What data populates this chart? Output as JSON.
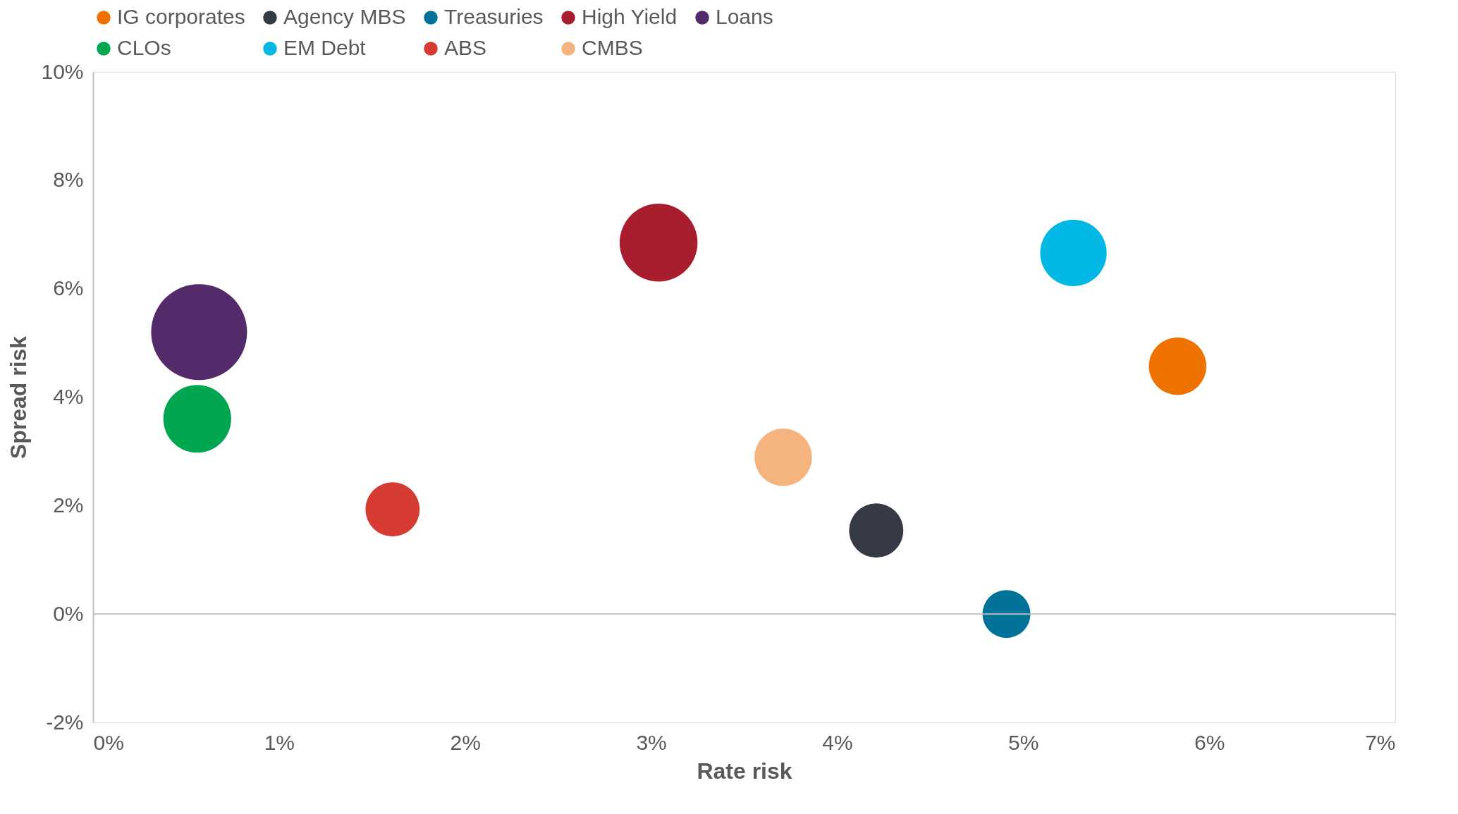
{
  "chart_data": {
    "type": "bubble",
    "xlabel": "Rate risk",
    "ylabel": "Spread risk",
    "xlim": [
      0,
      7
    ],
    "ylim": [
      -2,
      10
    ],
    "xticks": [
      {
        "value": 0,
        "label": "0%"
      },
      {
        "value": 1,
        "label": "1%"
      },
      {
        "value": 2,
        "label": "2%"
      },
      {
        "value": 3,
        "label": "3%"
      },
      {
        "value": 4,
        "label": "4%"
      },
      {
        "value": 5,
        "label": "5%"
      },
      {
        "value": 6,
        "label": "6%"
      },
      {
        "value": 7,
        "label": "7%"
      }
    ],
    "yticks": [
      {
        "value": -2,
        "label": "-2%"
      },
      {
        "value": 0,
        "label": "0%"
      },
      {
        "value": 2,
        "label": "2%"
      },
      {
        "value": 4,
        "label": "4%"
      },
      {
        "value": 6,
        "label": "6%"
      },
      {
        "value": 8,
        "label": "8%"
      },
      {
        "value": 10,
        "label": "10%"
      }
    ],
    "grid": false,
    "legend": "top",
    "ref_lines": [
      {
        "axis": "y",
        "value": 0,
        "color": "#bfbfbf"
      }
    ],
    "series": [
      {
        "name": "IG corporates",
        "color": "#ef7100",
        "x": [
          5.83
        ],
        "values": [
          4.57
        ],
        "sizes": [
          0.36
        ]
      },
      {
        "name": "Agency MBS",
        "color": "#363a45",
        "x": [
          4.21
        ],
        "values": [
          1.54
        ],
        "sizes": [
          0.32
        ]
      },
      {
        "name": "Treasuries",
        "color": "#00729a",
        "x": [
          4.91
        ],
        "values": [
          0.0
        ],
        "sizes": [
          0.25
        ]
      },
      {
        "name": "High Yield",
        "color": "#a91e2e",
        "x": [
          3.04
        ],
        "values": [
          6.85
        ],
        "sizes": [
          0.66
        ]
      },
      {
        "name": "Loans",
        "color": "#532a6a",
        "x": [
          0.57
        ],
        "values": [
          5.2
        ],
        "sizes": [
          1
        ]
      },
      {
        "name": "CLOs",
        "color": "#00a650",
        "x": [
          0.56
        ],
        "values": [
          3.6
        ],
        "sizes": [
          0.5
        ]
      },
      {
        "name": "EM Debt",
        "color": "#00b8e3",
        "x": [
          5.27
        ],
        "values": [
          6.66
        ],
        "sizes": [
          0.48
        ]
      },
      {
        "name": "ABS",
        "color": "#d63b34",
        "x": [
          1.61
        ],
        "values": [
          1.93
        ],
        "sizes": [
          0.32
        ]
      },
      {
        "name": "CMBS",
        "color": "#f5b47e",
        "x": [
          3.71
        ],
        "values": [
          2.89
        ],
        "sizes": [
          0.36
        ]
      }
    ]
  }
}
